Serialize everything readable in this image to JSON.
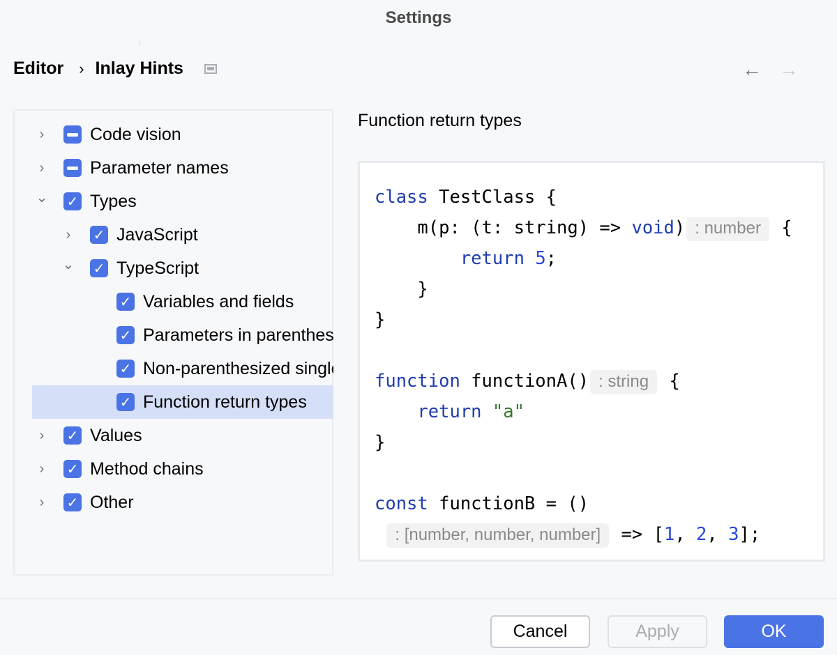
{
  "window": {
    "title": "Settings"
  },
  "breadcrumb": {
    "parent": "Editor",
    "separator": "›",
    "current": "Inlay Hints"
  },
  "nav": {
    "back": "←",
    "forward": "→"
  },
  "tree": [
    {
      "label": "Code vision",
      "level": 0,
      "arrow": "›",
      "state": "indeterminate"
    },
    {
      "label": "Parameter names",
      "level": 0,
      "arrow": "›",
      "state": "indeterminate"
    },
    {
      "label": "Types",
      "level": 0,
      "arrow": "⌄",
      "state": "checked"
    },
    {
      "label": "JavaScript",
      "level": 1,
      "arrow": "›",
      "state": "checked"
    },
    {
      "label": "TypeScript",
      "level": 1,
      "arrow": "⌄",
      "state": "checked"
    },
    {
      "label": "Variables and fields",
      "level": 2,
      "arrow": "",
      "state": "checked"
    },
    {
      "label": "Parameters in parentheses",
      "level": 2,
      "arrow": "",
      "state": "checked"
    },
    {
      "label": "Non-parenthesized single parameter",
      "level": 2,
      "arrow": "",
      "state": "checked"
    },
    {
      "label": "Function return types",
      "level": 2,
      "arrow": "",
      "state": "checked",
      "selected": true
    },
    {
      "label": "Values",
      "level": 0,
      "arrow": "›",
      "state": "checked"
    },
    {
      "label": "Method chains",
      "level": 0,
      "arrow": "›",
      "state": "checked"
    },
    {
      "label": "Other",
      "level": 0,
      "arrow": "›",
      "state": "checked"
    }
  ],
  "panel": {
    "title": "Function return types"
  },
  "code": [
    [
      {
        "t": "class",
        "c": "kw"
      },
      {
        "t": " TestClass {"
      }
    ],
    [
      {
        "t": "    m(p: (t: string) => "
      },
      {
        "t": "void",
        "c": "kw"
      },
      {
        "t": ")"
      },
      {
        "t": ": number",
        "c": "hint"
      },
      {
        "t": " {"
      }
    ],
    [
      {
        "t": "        "
      },
      {
        "t": "return",
        "c": "kw"
      },
      {
        "t": " "
      },
      {
        "t": "5",
        "c": "num"
      },
      {
        "t": ";"
      }
    ],
    [
      {
        "t": "    }"
      }
    ],
    [
      {
        "t": "}"
      }
    ],
    [
      {
        "t": ""
      }
    ],
    [
      {
        "t": "function",
        "c": "kw"
      },
      {
        "t": " functionA()"
      },
      {
        "t": ": string",
        "c": "hint"
      },
      {
        "t": " {"
      }
    ],
    [
      {
        "t": "    "
      },
      {
        "t": "return",
        "c": "kw"
      },
      {
        "t": " "
      },
      {
        "t": "\"a\"",
        "c": "str"
      }
    ],
    [
      {
        "t": "}"
      }
    ],
    [
      {
        "t": ""
      }
    ],
    [
      {
        "t": "const",
        "c": "kw"
      },
      {
        "t": " functionB = ()"
      }
    ],
    [
      {
        "t": " "
      },
      {
        "t": ": [number, number, number]",
        "c": "hint"
      },
      {
        "t": " => ["
      },
      {
        "t": "1",
        "c": "num"
      },
      {
        "t": ", "
      },
      {
        "t": "2",
        "c": "num"
      },
      {
        "t": ", "
      },
      {
        "t": "3",
        "c": "num"
      },
      {
        "t": "];"
      }
    ]
  ],
  "buttons": {
    "cancel": "Cancel",
    "apply": "Apply",
    "ok": "OK"
  },
  "colors": {
    "accent": "#4a74e5",
    "selection": "#d5e0f8",
    "keyword": "#1f3db0",
    "string": "#347a2b"
  }
}
